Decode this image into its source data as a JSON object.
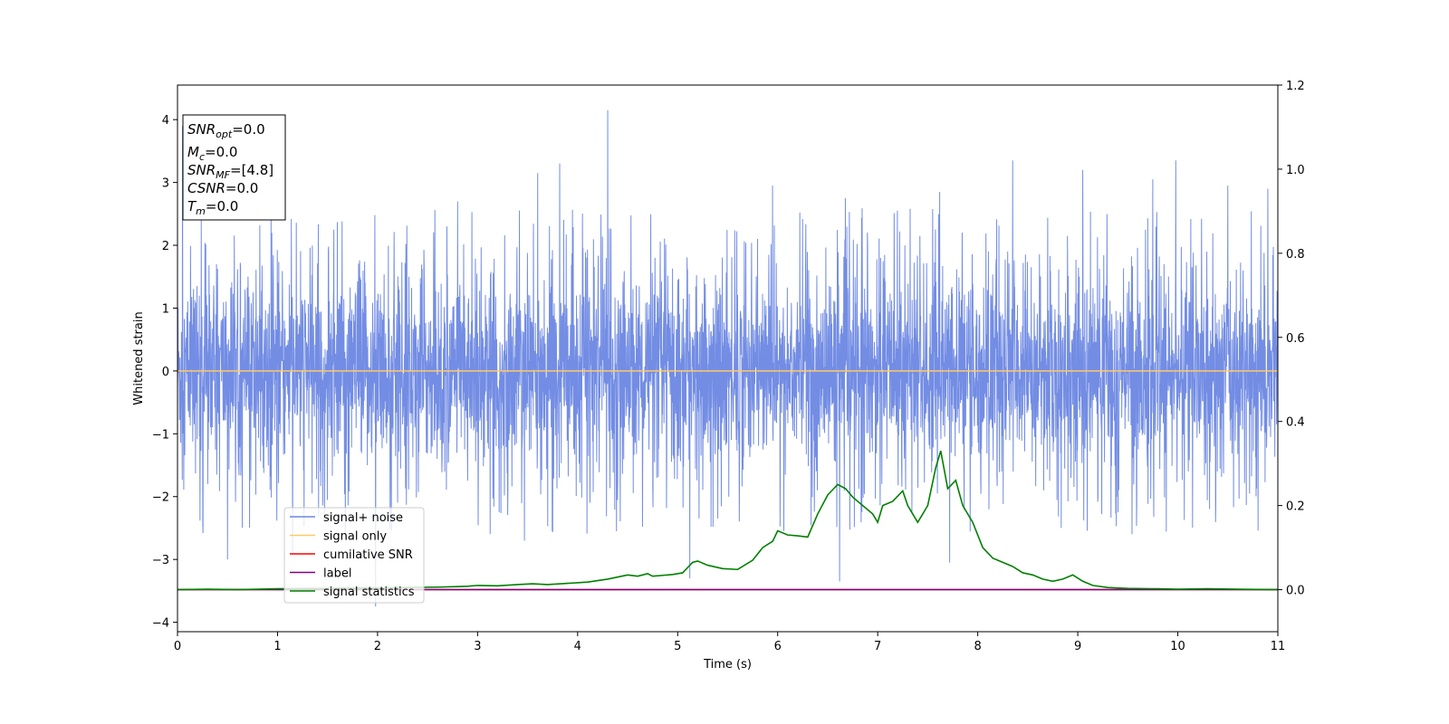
{
  "chart_data": {
    "type": "line",
    "xlabel": "Time (s)",
    "ylabel": "Whitened strain",
    "xlim": [
      0,
      11
    ],
    "ylim": [
      -4.15,
      4.55
    ],
    "y2lim": [
      -0.1,
      1.2
    ],
    "x_ticks": [
      "0",
      "1",
      "2",
      "3",
      "4",
      "5",
      "6",
      "7",
      "8",
      "9",
      "10",
      "11"
    ],
    "y_ticks": [
      "−4",
      "−3",
      "−2",
      "−1",
      "0",
      "1",
      "2",
      "3",
      "4"
    ],
    "y2_ticks": [
      "0.0",
      "0.2",
      "0.4",
      "0.6",
      "0.8",
      "1.0",
      "1.2"
    ],
    "grid": false,
    "legend_position": "lower-left",
    "annotation": [
      {
        "main": "SNR",
        "sub": "opt",
        "value": "=0.0"
      },
      {
        "main": "M",
        "sub": "c",
        "value": "=0.0"
      },
      {
        "main": "SNR",
        "sub": "MF",
        "value": "=[4.8]"
      },
      {
        "main": "CSNR",
        "sub": "",
        "value": "=0.0"
      },
      {
        "main": "T",
        "sub": "m",
        "value": "=0.0"
      }
    ],
    "series": [
      {
        "name": "signal+ noise",
        "color": "#6b87e3",
        "axis": "left",
        "kind": "noise",
        "envelope": {
          "typical": 1.35,
          "max": 4.15,
          "min": -3.75
        },
        "spikes": [
          [
            0.05,
            3.9
          ],
          [
            0.5,
            -3.0
          ],
          [
            1.15,
            -2.9
          ],
          [
            1.98,
            -3.75
          ],
          [
            2.8,
            2.7
          ],
          [
            3.6,
            3.15
          ],
          [
            3.82,
            3.3
          ],
          [
            4.3,
            4.15
          ],
          [
            5.12,
            -3.3
          ],
          [
            5.95,
            2.95
          ],
          [
            6.62,
            -3.35
          ],
          [
            7.62,
            2.85
          ],
          [
            7.72,
            -3.05
          ],
          [
            8.35,
            3.35
          ],
          [
            9.05,
            3.2
          ],
          [
            9.75,
            3.05
          ],
          [
            9.98,
            3.35
          ],
          [
            10.5,
            2.95
          ],
          [
            10.9,
            2.9
          ]
        ]
      },
      {
        "name": "signal only",
        "color": "#ffc966",
        "axis": "left",
        "x": [
          0,
          11
        ],
        "y": [
          0,
          0
        ]
      },
      {
        "name": "cumilative SNR",
        "color": "#ff0000",
        "axis": "right",
        "x": [
          0,
          11
        ],
        "y": [
          0,
          0
        ]
      },
      {
        "name": "label",
        "color": "#800080",
        "axis": "right",
        "x": [
          0,
          11
        ],
        "y": [
          0,
          0
        ]
      },
      {
        "name": "signal statistics",
        "color": "#008000",
        "axis": "right",
        "x": [
          0,
          0.3,
          0.6,
          1.0,
          1.5,
          2.0,
          2.3,
          2.6,
          2.9,
          3.0,
          3.2,
          3.4,
          3.55,
          3.7,
          3.9,
          4.1,
          4.3,
          4.5,
          4.6,
          4.7,
          4.75,
          4.85,
          4.95,
          5.05,
          5.15,
          5.2,
          5.3,
          5.45,
          5.6,
          5.75,
          5.85,
          5.95,
          6.0,
          6.1,
          6.2,
          6.3,
          6.4,
          6.5,
          6.6,
          6.68,
          6.75,
          6.85,
          6.95,
          7.0,
          7.05,
          7.15,
          7.25,
          7.3,
          7.4,
          7.5,
          7.58,
          7.63,
          7.7,
          7.78,
          7.85,
          7.95,
          8.05,
          8.15,
          8.25,
          8.35,
          8.45,
          8.55,
          8.65,
          8.75,
          8.85,
          8.95,
          9.05,
          9.15,
          9.3,
          9.5,
          9.8,
          10.0,
          10.3,
          10.6,
          11.0
        ],
        "y": [
          0.0,
          0.001,
          0.0,
          0.002,
          0.003,
          0.004,
          0.005,
          0.006,
          0.008,
          0.01,
          0.009,
          0.012,
          0.014,
          0.012,
          0.015,
          0.018,
          0.025,
          0.035,
          0.032,
          0.038,
          0.032,
          0.034,
          0.036,
          0.04,
          0.065,
          0.068,
          0.058,
          0.05,
          0.048,
          0.07,
          0.1,
          0.115,
          0.14,
          0.13,
          0.128,
          0.125,
          0.18,
          0.225,
          0.25,
          0.24,
          0.22,
          0.2,
          0.18,
          0.16,
          0.2,
          0.21,
          0.235,
          0.2,
          0.16,
          0.2,
          0.29,
          0.33,
          0.24,
          0.26,
          0.2,
          0.16,
          0.1,
          0.075,
          0.065,
          0.055,
          0.04,
          0.035,
          0.025,
          0.02,
          0.025,
          0.035,
          0.02,
          0.01,
          0.005,
          0.003,
          0.002,
          0.001,
          0.002,
          0.001,
          0.0
        ]
      }
    ]
  }
}
